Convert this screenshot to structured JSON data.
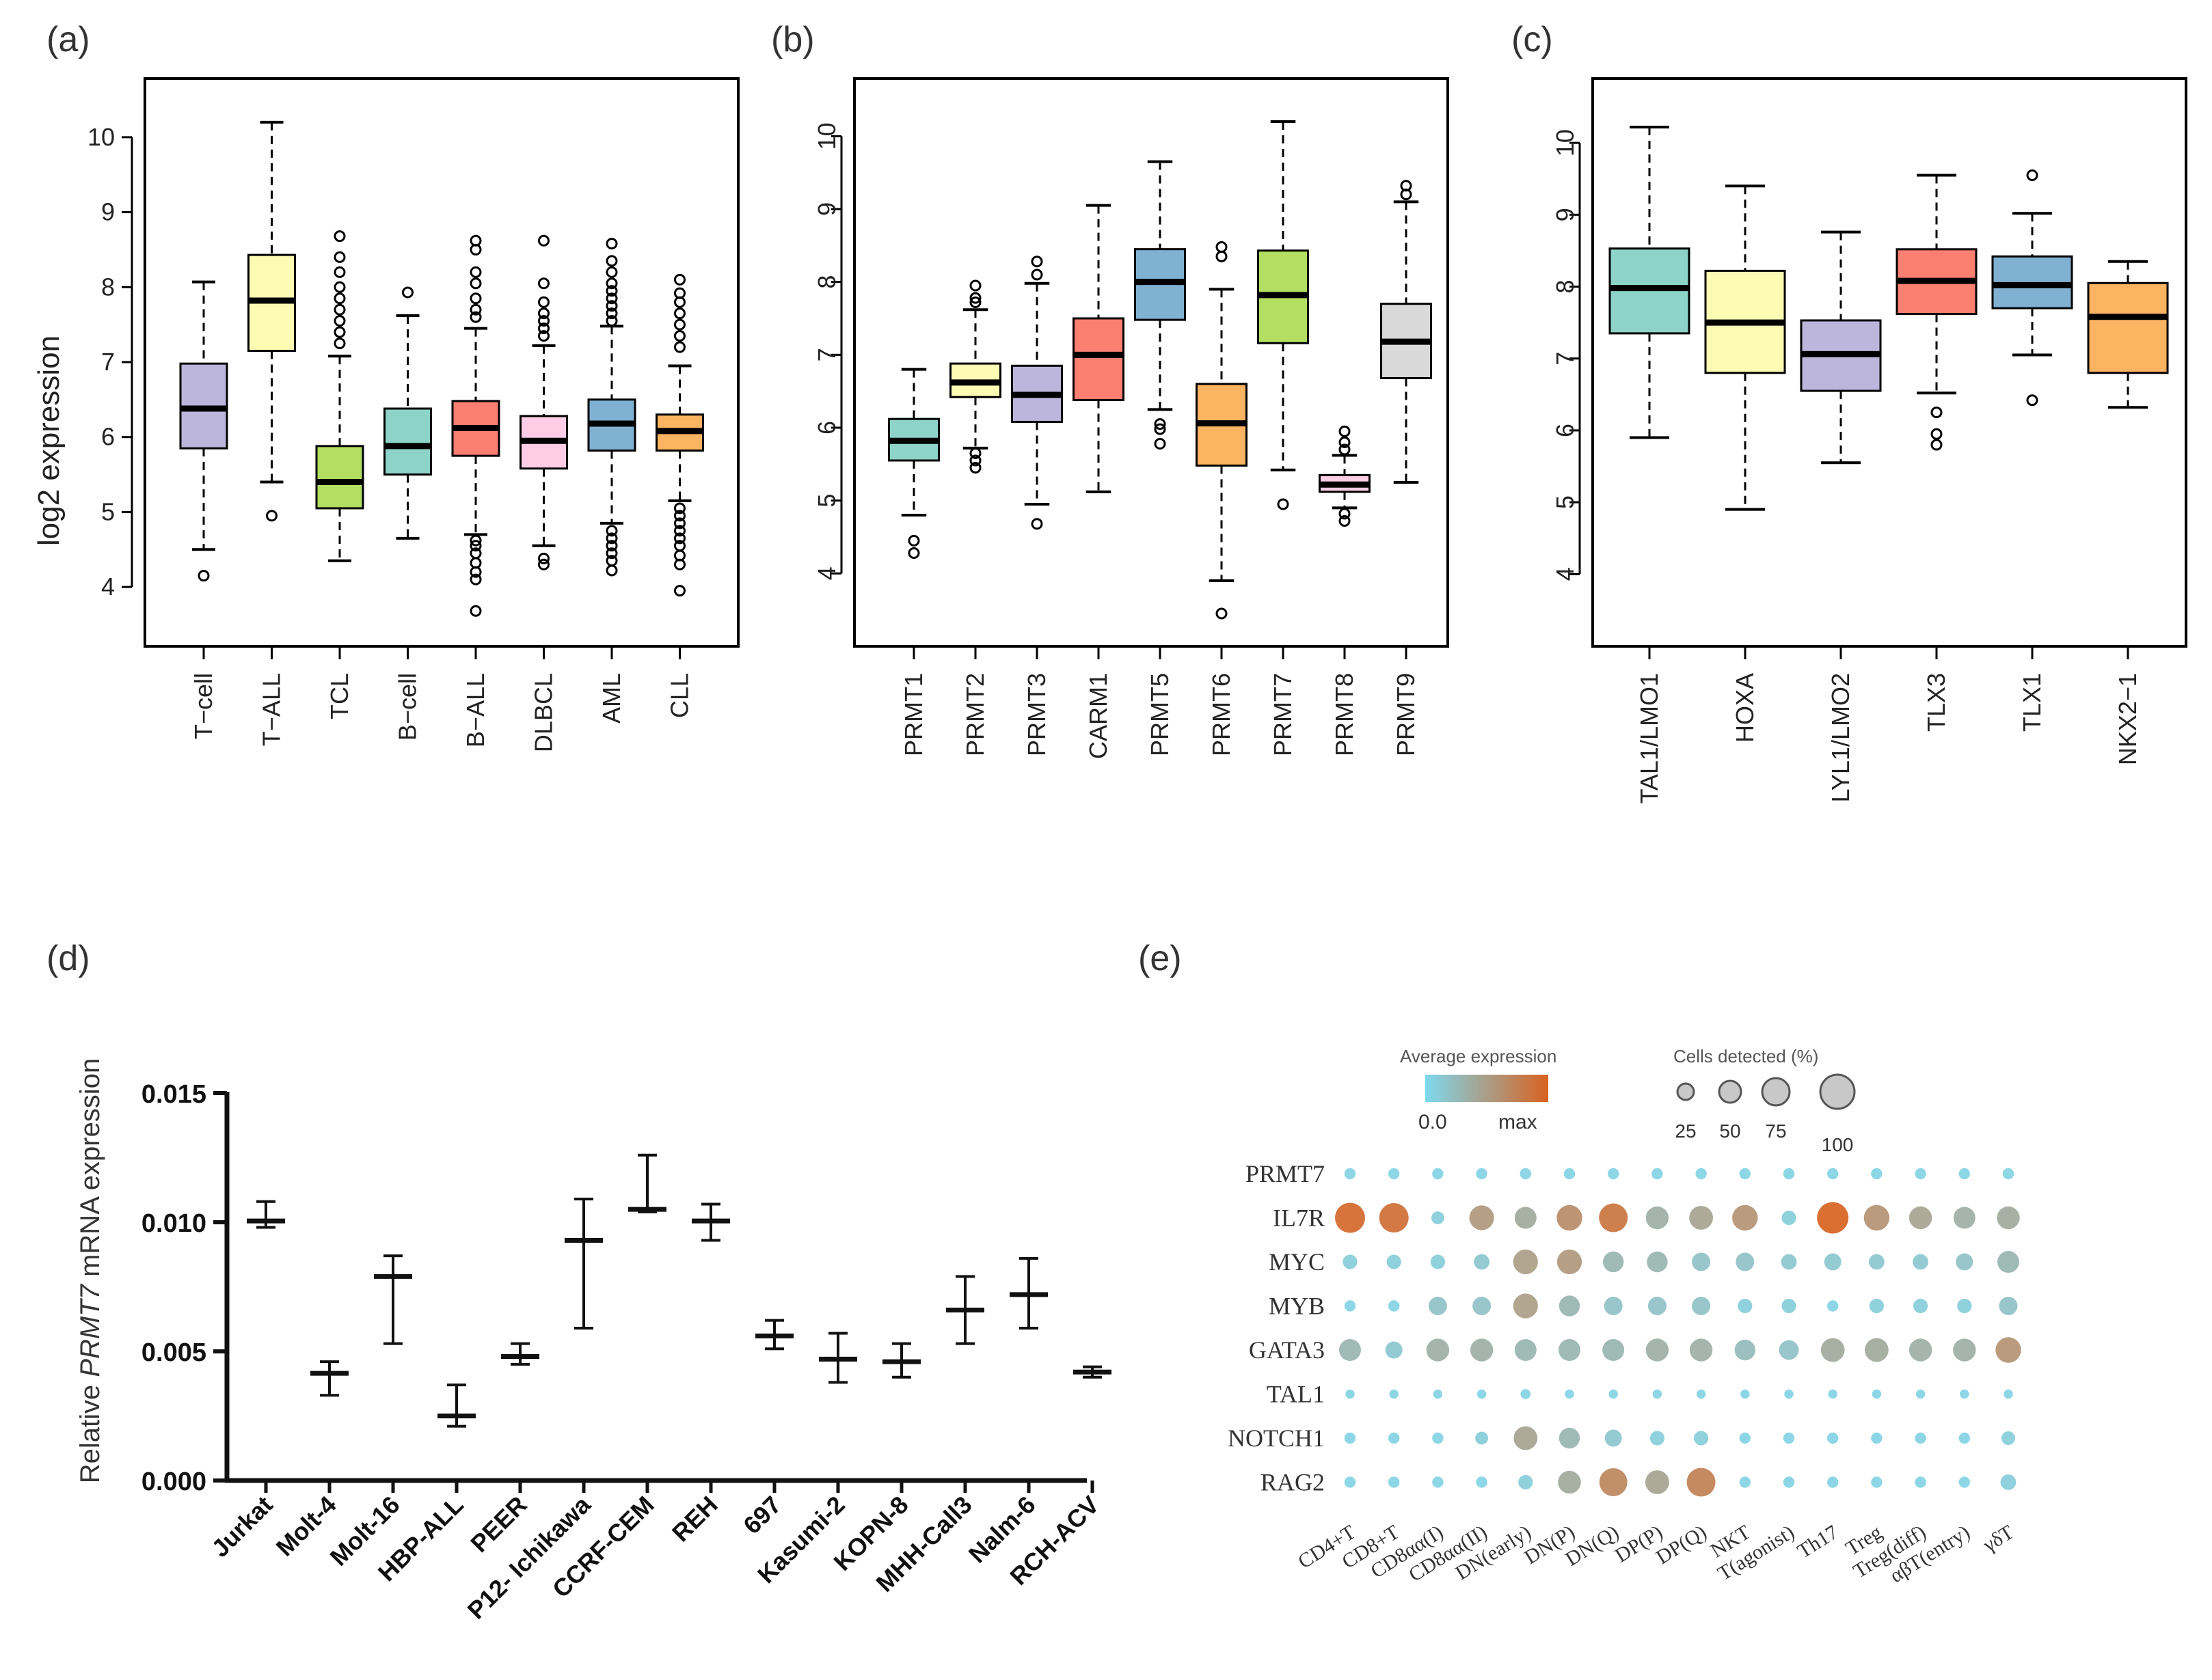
{
  "chart_data": [
    {
      "panel": "(a)",
      "type": "boxplot",
      "ylabel": "log2 expression",
      "ylim": [
        3.5,
        10.5
      ],
      "yticks": [
        4,
        5,
        6,
        7,
        8,
        9,
        10
      ],
      "ytick_labels": [
        "4",
        "5",
        "6",
        "7",
        "8",
        "9",
        "10"
      ],
      "categories": [
        "T−cell",
        "T−ALL",
        "TCL",
        "B−cell",
        "B−ALL",
        "DLBCL",
        "AML",
        "CLL"
      ],
      "colors": [
        "#bdb6dc",
        "#fbfbb4",
        "#b2df62",
        "#8dd3c7",
        "#fb8072",
        "#fccde5",
        "#80b1d3",
        "#fdb462"
      ],
      "boxes": [
        {
          "min": 4.5,
          "q1": 5.85,
          "median": 6.38,
          "q3": 6.98,
          "max": 8.07,
          "outliers": [
            4.15
          ]
        },
        {
          "min": 5.4,
          "q1": 7.15,
          "median": 7.82,
          "q3": 8.43,
          "max": 10.2,
          "outliers": [
            4.95
          ]
        },
        {
          "min": 4.35,
          "q1": 5.05,
          "median": 5.4,
          "q3": 5.88,
          "max": 7.08,
          "outliers": [
            7.25,
            7.4,
            7.55,
            7.7,
            7.85,
            8.0,
            8.2,
            8.4,
            8.68
          ]
        },
        {
          "min": 4.65,
          "q1": 5.5,
          "median": 5.88,
          "q3": 6.38,
          "max": 7.62,
          "outliers": [
            7.93
          ]
        },
        {
          "min": 4.7,
          "q1": 5.75,
          "median": 6.12,
          "q3": 6.48,
          "max": 7.45,
          "outliers": [
            3.68,
            4.1,
            4.2,
            4.32,
            4.45,
            4.55,
            4.62,
            7.6,
            7.7,
            7.85,
            8.05,
            8.2,
            8.5,
            8.62
          ]
        },
        {
          "min": 4.55,
          "q1": 5.58,
          "median": 5.95,
          "q3": 6.28,
          "max": 7.22,
          "outliers": [
            4.3,
            4.38,
            7.35,
            7.45,
            7.55,
            7.65,
            7.8,
            8.05,
            8.62
          ]
        },
        {
          "min": 4.85,
          "q1": 5.82,
          "median": 6.18,
          "q3": 6.5,
          "max": 7.48,
          "outliers": [
            4.22,
            4.35,
            4.45,
            4.55,
            4.65,
            4.75,
            7.55,
            7.65,
            7.75,
            7.85,
            7.95,
            8.05,
            8.2,
            8.35,
            8.58
          ]
        },
        {
          "min": 5.15,
          "q1": 5.82,
          "median": 6.08,
          "q3": 6.3,
          "max": 6.95,
          "outliers": [
            3.95,
            4.3,
            4.42,
            4.55,
            4.65,
            4.75,
            4.85,
            4.95,
            5.05,
            7.2,
            7.35,
            7.5,
            7.65,
            7.8,
            7.92,
            8.1
          ]
        }
      ]
    },
    {
      "panel": "(b)",
      "type": "boxplot",
      "ylim": [
        3.3,
        10.5
      ],
      "yticks": [
        4,
        5,
        6,
        7,
        8,
        9,
        10
      ],
      "ytick_labels": [
        "4",
        "5",
        "6",
        "7",
        "8",
        "9",
        "10"
      ],
      "categories": [
        "PRMT1",
        "PRMT2",
        "PRMT3",
        "CARM1",
        "PRMT5",
        "PRMT6",
        "PRMT7",
        "PRMT8",
        "PRMT9"
      ],
      "colors": [
        "#8dd3c7",
        "#fbfbb4",
        "#bdb6dc",
        "#fb8072",
        "#80b1d3",
        "#fdb462",
        "#b2df62",
        "#fccde5",
        "#d9d9d9"
      ],
      "boxes": [
        {
          "min": 4.8,
          "q1": 5.55,
          "median": 5.82,
          "q3": 6.12,
          "max": 6.8,
          "outliers": [
            4.28,
            4.45
          ]
        },
        {
          "min": 5.72,
          "q1": 6.42,
          "median": 6.62,
          "q3": 6.88,
          "max": 7.62,
          "outliers": [
            5.45,
            5.55,
            5.65,
            7.72,
            7.78,
            7.95
          ]
        },
        {
          "min": 4.95,
          "q1": 6.08,
          "median": 6.45,
          "q3": 6.85,
          "max": 7.98,
          "outliers": [
            4.68,
            8.1,
            8.28
          ]
        },
        {
          "min": 5.12,
          "q1": 6.38,
          "median": 7.0,
          "q3": 7.5,
          "max": 9.05,
          "outliers": []
        },
        {
          "min": 6.25,
          "q1": 7.48,
          "median": 8.0,
          "q3": 8.45,
          "max": 9.65,
          "outliers": [
            5.78,
            5.98,
            6.05
          ]
        },
        {
          "min": 3.9,
          "q1": 5.48,
          "median": 6.06,
          "q3": 6.6,
          "max": 7.9,
          "outliers": [
            3.45,
            8.35,
            8.48
          ]
        },
        {
          "min": 5.42,
          "q1": 7.16,
          "median": 7.82,
          "q3": 8.43,
          "max": 10.2,
          "outliers": [
            4.95
          ]
        },
        {
          "min": 4.9,
          "q1": 5.12,
          "median": 5.22,
          "q3": 5.35,
          "max": 5.62,
          "outliers": [
            4.72,
            4.82,
            5.7,
            5.8,
            5.95
          ]
        },
        {
          "min": 5.25,
          "q1": 6.68,
          "median": 7.18,
          "q3": 7.7,
          "max": 9.1,
          "outliers": [
            9.2,
            9.32
          ]
        }
      ]
    },
    {
      "panel": "(c)",
      "type": "boxplot",
      "ylim": [
        3.3,
        10.6
      ],
      "yticks": [
        4,
        5,
        6,
        7,
        8,
        9,
        10
      ],
      "ytick_labels": [
        "4",
        "5",
        "6",
        "7",
        "8",
        "9",
        "10"
      ],
      "categories": [
        "TAL1/LMO1",
        "HOXA",
        "LYL1/LMO2",
        "TLX3",
        "TLX1",
        "NKX2−1"
      ],
      "colors": [
        "#8dd3c7",
        "#fbfbb4",
        "#bdb6dc",
        "#fb8072",
        "#80b1d3",
        "#fdb462"
      ],
      "boxes": [
        {
          "min": 5.9,
          "q1": 7.35,
          "median": 7.98,
          "q3": 8.53,
          "max": 10.22,
          "outliers": []
        },
        {
          "min": 4.9,
          "q1": 6.8,
          "median": 7.5,
          "q3": 8.22,
          "max": 9.4,
          "outliers": []
        },
        {
          "min": 5.55,
          "q1": 6.55,
          "median": 7.06,
          "q3": 7.53,
          "max": 8.76,
          "outliers": []
        },
        {
          "min": 6.52,
          "q1": 7.62,
          "median": 8.08,
          "q3": 8.52,
          "max": 9.55,
          "outliers": [
            5.8,
            5.95,
            6.25
          ]
        },
        {
          "min": 7.05,
          "q1": 7.7,
          "median": 8.02,
          "q3": 8.42,
          "max": 9.02,
          "outliers": [
            6.42,
            9.55
          ]
        },
        {
          "min": 6.32,
          "q1": 6.8,
          "median": 7.58,
          "q3": 8.05,
          "max": 8.35,
          "outliers": []
        }
      ]
    },
    {
      "panel": "(d)",
      "type": "errorbar",
      "ylabel_prefix": "Relative ",
      "ylabel_gene": "PRMT7",
      "ylabel_suffix": " mRNA expression",
      "ylim": [
        0,
        0.015
      ],
      "yticks": [
        0,
        0.005,
        0.01,
        0.015
      ],
      "ytick_labels": [
        "0.000",
        "0.005",
        "0.010",
        "0.015"
      ],
      "categories": [
        "Jurkat",
        "Molt-4",
        "Molt-16",
        "HBP-ALL",
        "PEER",
        "P12- Ichikawa",
        "CCRF-CEM",
        "REH",
        "697",
        "Kasumi-2",
        "KOPN-8",
        "MHH-Call3",
        "Nalm-6",
        "RCH-ACV"
      ],
      "mean": [
        0.01005,
        0.00415,
        0.0079,
        0.0025,
        0.0048,
        0.0093,
        0.0105,
        0.01005,
        0.0056,
        0.0047,
        0.0046,
        0.0066,
        0.0072,
        0.0042
      ],
      "low": [
        0.0098,
        0.0033,
        0.0053,
        0.0021,
        0.0045,
        0.0059,
        0.0104,
        0.0093,
        0.0051,
        0.0038,
        0.004,
        0.0053,
        0.0059,
        0.004
      ],
      "high": [
        0.0108,
        0.0046,
        0.0087,
        0.0037,
        0.0053,
        0.0109,
        0.0126,
        0.0107,
        0.0062,
        0.0057,
        0.0053,
        0.0079,
        0.0086,
        0.0044
      ]
    },
    {
      "panel": "(e)",
      "type": "dotplot",
      "legend_color_title": "Average expression",
      "legend_color_min": "0.0",
      "legend_color_max": "max",
      "legend_size_title": "Cells detected (%)",
      "legend_size_values": [
        "25",
        "50",
        "75",
        "100"
      ],
      "color_low": "#7dd9ee",
      "color_high": "#d86220",
      "genes": [
        "PRMT7",
        "IL7R",
        "MYC",
        "MYB",
        "GATA3",
        "TAL1",
        "NOTCH1",
        "RAG2"
      ],
      "cell_types": [
        "CD4+T",
        "CD8+T",
        "CD8αα(I)",
        "CD8αα(II)",
        "DN(early)",
        "DN(P)",
        "DN(Q)",
        "DP(P)",
        "DP(Q)",
        "NKT",
        "T(agonist)",
        "Th17",
        "Treg",
        "Treg(diff)",
        "αβT(entry)",
        "γδT"
      ],
      "expression": [
        [
          0.05,
          0.05,
          0.05,
          0.05,
          0.05,
          0.05,
          0.05,
          0.05,
          0.05,
          0.05,
          0.05,
          0.05,
          0.05,
          0.05,
          0.05,
          0.05
        ],
        [
          0.95,
          0.9,
          0.1,
          0.55,
          0.4,
          0.65,
          0.85,
          0.35,
          0.45,
          0.6,
          0.1,
          1.0,
          0.6,
          0.45,
          0.35,
          0.4
        ],
        [
          0.1,
          0.1,
          0.1,
          0.15,
          0.5,
          0.55,
          0.3,
          0.3,
          0.2,
          0.2,
          0.15,
          0.15,
          0.15,
          0.15,
          0.2,
          0.3
        ],
        [
          0.05,
          0.05,
          0.2,
          0.2,
          0.5,
          0.3,
          0.2,
          0.2,
          0.2,
          0.1,
          0.1,
          0.05,
          0.1,
          0.1,
          0.1,
          0.2
        ],
        [
          0.3,
          0.15,
          0.35,
          0.35,
          0.3,
          0.3,
          0.3,
          0.35,
          0.35,
          0.25,
          0.2,
          0.4,
          0.4,
          0.35,
          0.35,
          0.6
        ],
        [
          0.05,
          0.05,
          0.05,
          0.05,
          0.05,
          0.05,
          0.05,
          0.05,
          0.05,
          0.05,
          0.05,
          0.05,
          0.05,
          0.05,
          0.05,
          0.05
        ],
        [
          0.05,
          0.05,
          0.05,
          0.1,
          0.45,
          0.3,
          0.15,
          0.1,
          0.1,
          0.05,
          0.05,
          0.05,
          0.05,
          0.05,
          0.05,
          0.1
        ],
        [
          0.05,
          0.05,
          0.05,
          0.05,
          0.1,
          0.4,
          0.7,
          0.45,
          0.75,
          0.05,
          0.05,
          0.05,
          0.05,
          0.05,
          0.05,
          0.1
        ]
      ],
      "detected": [
        [
          5,
          5,
          5,
          5,
          5,
          5,
          5,
          5,
          5,
          5,
          5,
          5,
          5,
          5,
          5,
          5
        ],
        [
          90,
          85,
          8,
          55,
          40,
          60,
          80,
          45,
          50,
          60,
          12,
          100,
          60,
          45,
          40,
          45
        ],
        [
          12,
          12,
          12,
          15,
          55,
          55,
          35,
          35,
          25,
          25,
          15,
          20,
          15,
          15,
          20,
          40
        ],
        [
          5,
          5,
          25,
          25,
          55,
          35,
          25,
          25,
          25,
          12,
          12,
          5,
          12,
          12,
          12,
          25
        ],
        [
          40,
          20,
          45,
          45,
          40,
          40,
          40,
          45,
          45,
          35,
          30,
          50,
          50,
          45,
          45,
          60
        ],
        [
          2,
          2,
          2,
          2,
          3,
          2,
          2,
          2,
          2,
          2,
          2,
          2,
          2,
          2,
          2,
          2
        ],
        [
          5,
          5,
          5,
          8,
          50,
          35,
          20,
          12,
          12,
          5,
          5,
          5,
          5,
          5,
          5,
          10
        ],
        [
          5,
          5,
          5,
          5,
          12,
          45,
          75,
          50,
          80,
          5,
          5,
          5,
          5,
          5,
          5,
          15
        ]
      ]
    }
  ]
}
